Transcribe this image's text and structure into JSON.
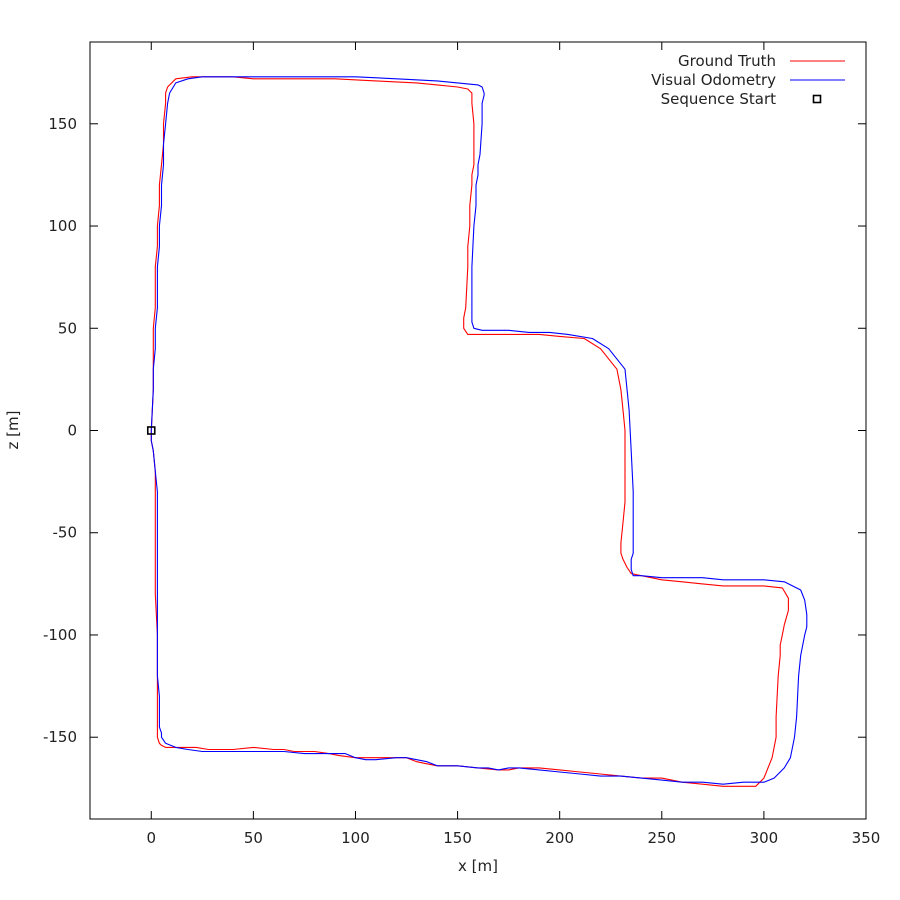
{
  "chart_data": {
    "type": "line",
    "title": "",
    "xlabel": "x [m]",
    "ylabel": "z [m]",
    "xlim": [
      -30,
      350
    ],
    "ylim": [
      -190,
      190
    ],
    "xticks": [
      0,
      50,
      100,
      150,
      200,
      250,
      300,
      350
    ],
    "yticks": [
      -150,
      -100,
      -50,
      0,
      50,
      100,
      150
    ],
    "grid": false,
    "legend_position": "top-right",
    "series": [
      {
        "name": "Ground Truth",
        "color": "#ff0000",
        "x": [
          0,
          0,
          1,
          2,
          2,
          2,
          2,
          2,
          3,
          3,
          3,
          3,
          3,
          3,
          3,
          4,
          5,
          7,
          12,
          18,
          22,
          28,
          35,
          40,
          50,
          60,
          65,
          70,
          80,
          87,
          92,
          100,
          105,
          110,
          120,
          125,
          130,
          135,
          140,
          150,
          160,
          170,
          175,
          180,
          190,
          200,
          210,
          220,
          230,
          240,
          250,
          260,
          270,
          280,
          290,
          296,
          300,
          304,
          306,
          306,
          307,
          308,
          308,
          309,
          310,
          312,
          312,
          309,
          300,
          280,
          270,
          260,
          250,
          240,
          235,
          233,
          231,
          230,
          230,
          231,
          232,
          232,
          232,
          231,
          230,
          228,
          220,
          212,
          200,
          190,
          180,
          170,
          165,
          160,
          155,
          153,
          153,
          154,
          155,
          155,
          156,
          156,
          157,
          157,
          158,
          158,
          157,
          157,
          155,
          150,
          140,
          130,
          110,
          90,
          70,
          50,
          40,
          30,
          20,
          12,
          8,
          7,
          7,
          6,
          6,
          5,
          4,
          4,
          3,
          3,
          2,
          2,
          1,
          1,
          1,
          0
        ],
        "y": [
          0,
          -5,
          -10,
          -20,
          -30,
          -40,
          -60,
          -80,
          -100,
          -110,
          -120,
          -130,
          -140,
          -145,
          -150,
          -153,
          -154,
          -155,
          -155,
          -155,
          -155,
          -156,
          -156,
          -156,
          -155,
          -156,
          -156,
          -157,
          -157,
          -158,
          -159,
          -160,
          -160,
          -160,
          -160,
          -160,
          -162,
          -163,
          -164,
          -164,
          -165,
          -166,
          -166,
          -165,
          -165,
          -166,
          -167,
          -168,
          -169,
          -170,
          -170,
          -172,
          -173,
          -174,
          -174,
          -174,
          -170,
          -160,
          -150,
          -140,
          -120,
          -110,
          -105,
          -100,
          -95,
          -88,
          -82,
          -77,
          -76,
          -76,
          -75,
          -74,
          -73,
          -71,
          -70,
          -67,
          -63,
          -60,
          -55,
          -45,
          -35,
          -20,
          0,
          10,
          20,
          30,
          40,
          45,
          46,
          47,
          47,
          47,
          47,
          47,
          47,
          50,
          55,
          60,
          80,
          90,
          100,
          110,
          120,
          125,
          130,
          150,
          160,
          165,
          167,
          168,
          169,
          170,
          171,
          172,
          172,
          172,
          173,
          173,
          173,
          172,
          168,
          165,
          160,
          150,
          140,
          130,
          120,
          110,
          100,
          90,
          80,
          60,
          50,
          40,
          20,
          0
        ]
      },
      {
        "name": "Visual Odometry",
        "color": "#0000ff",
        "x": [
          0,
          0,
          1,
          2,
          3,
          3,
          3,
          3,
          3,
          3,
          4,
          4,
          4,
          5,
          5,
          7,
          12,
          18,
          25,
          35,
          45,
          55,
          65,
          75,
          85,
          95,
          100,
          105,
          110,
          120,
          125,
          130,
          135,
          140,
          150,
          160,
          165,
          170,
          175,
          180,
          190,
          200,
          210,
          220,
          230,
          240,
          250,
          260,
          270,
          280,
          290,
          300,
          305,
          310,
          313,
          315,
          316,
          317,
          318,
          319,
          320,
          321,
          321,
          320,
          318,
          314,
          310,
          300,
          290,
          280,
          270,
          260,
          250,
          240,
          236,
          235,
          235,
          236,
          236,
          236,
          236,
          235,
          234,
          232,
          224,
          216,
          204,
          195,
          185,
          175,
          168,
          162,
          158,
          157,
          157,
          157,
          157,
          158,
          159,
          159,
          159,
          160,
          160,
          161,
          162,
          162,
          163,
          163,
          162,
          160,
          150,
          140,
          120,
          100,
          80,
          60,
          45,
          35,
          25,
          18,
          12,
          9,
          8,
          7,
          6,
          6,
          5,
          5,
          4,
          4,
          3,
          3,
          2,
          2,
          1,
          1,
          0
        ],
        "y": [
          0,
          -5,
          -10,
          -20,
          -30,
          -40,
          -60,
          -80,
          -100,
          -120,
          -130,
          -140,
          -145,
          -148,
          -150,
          -153,
          -155,
          -156,
          -157,
          -157,
          -157,
          -157,
          -157,
          -158,
          -158,
          -158,
          -160,
          -161,
          -161,
          -160,
          -160,
          -161,
          -162,
          -164,
          -164,
          -165,
          -165,
          -166,
          -165,
          -165,
          -166,
          -167,
          -168,
          -169,
          -169,
          -170,
          -171,
          -172,
          -172,
          -173,
          -172,
          -172,
          -170,
          -165,
          -160,
          -150,
          -140,
          -120,
          -110,
          -105,
          -100,
          -96,
          -90,
          -83,
          -78,
          -76,
          -74,
          -73,
          -73,
          -73,
          -72,
          -72,
          -72,
          -71,
          -71,
          -68,
          -63,
          -60,
          -55,
          -40,
          -30,
          -10,
          10,
          30,
          40,
          45,
          47,
          48,
          48,
          49,
          49,
          49,
          50,
          53,
          57,
          62,
          80,
          100,
          110,
          115,
          120,
          125,
          130,
          135,
          150,
          160,
          164,
          165,
          168,
          169,
          170,
          171,
          172,
          173,
          173,
          173,
          173,
          173,
          173,
          172,
          170,
          165,
          160,
          150,
          140,
          130,
          120,
          110,
          100,
          90,
          80,
          60,
          50,
          40,
          30,
          20,
          0
        ]
      }
    ],
    "markers": [
      {
        "name": "Sequence Start",
        "x": 0,
        "y": 0,
        "symbol": "square"
      }
    ]
  }
}
